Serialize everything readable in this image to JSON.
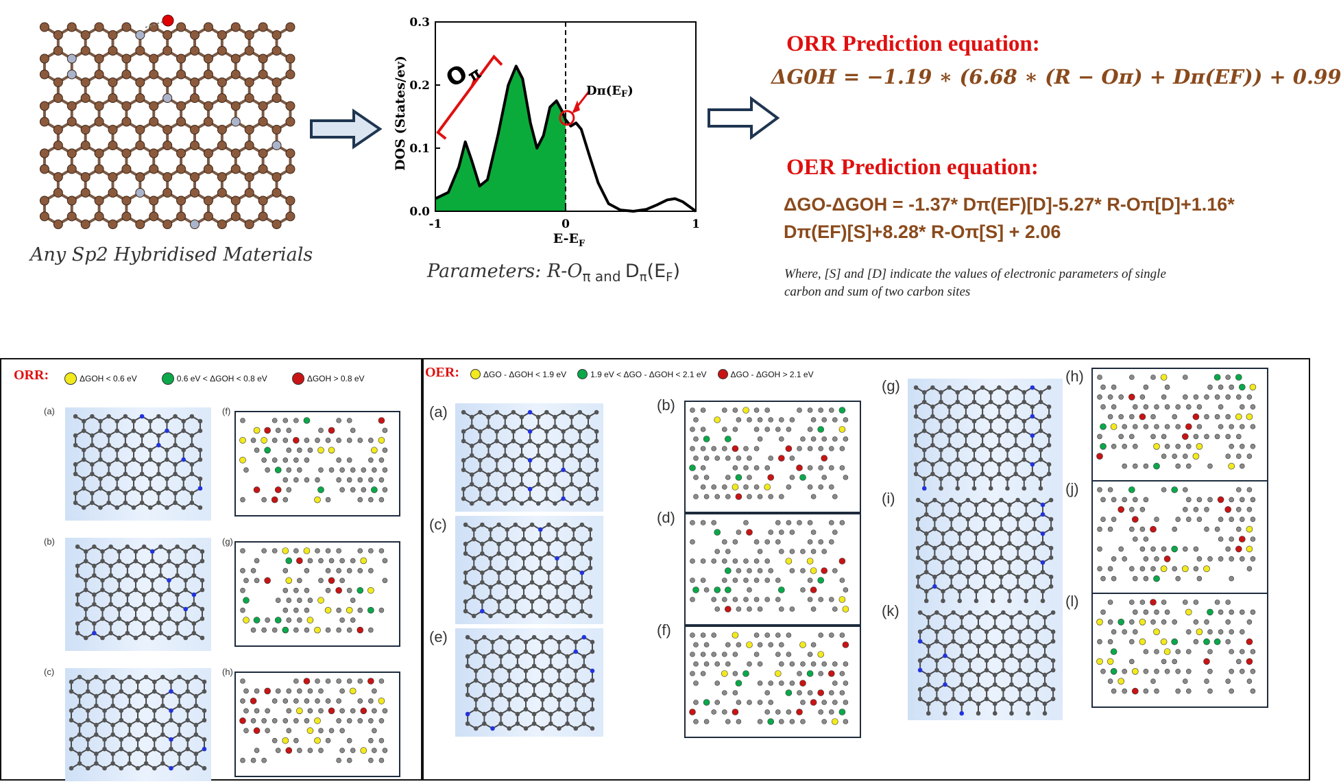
{
  "top": {
    "material_caption": "Any Sp2 Hybridised Materials",
    "dos_plot": {
      "ylabel": "DOS (States/ev)",
      "xlabel": "E-E",
      "xlabel_sub": "F",
      "op_label": "O",
      "op_sub": "π",
      "dpi_label": "Dπ(E",
      "dpi_sub": "F",
      "dpi_close": ")",
      "params_prefix": "Parameters: R-O",
      "params_pi": "π",
      "params_and": " and ",
      "params_d": "D",
      "params_d_sub": "π",
      "params_ef": "(E",
      "params_ef_sub": "F",
      "params_close": ")"
    },
    "orr_title": "ORR Prediction equation:",
    "orr_equation": "ΔG0H = −1.19 ∗ (6.68 ∗ (R − Oπ) + Dπ(EF)) + 0.99",
    "oer_title": "OER Prediction equation:",
    "oer_equation_line1": "ΔGO-ΔGOH = -1.37* Dπ(EF)[D]-5.27* R-Oπ[D]+1.16*",
    "oer_equation_line2": "Dπ(EF)[S]+8.28* R-Oπ[S] + 2.06",
    "where_line1": "Where, [S] and [D] indicate the values of electronic parameters of single",
    "where_line2": "carbon and sum of two carbon sites"
  },
  "chart_data": {
    "type": "area",
    "xlabel": "E-EF",
    "ylabel": "DOS (States/ev)",
    "xlim": [
      -1,
      1
    ],
    "ylim": [
      0,
      0.3
    ],
    "xticks": [
      "-1",
      "0",
      "1"
    ],
    "yticks": [
      "0.0",
      "0.1",
      "0.2",
      "0.3"
    ],
    "curve_x": [
      -1.0,
      -0.9,
      -0.82,
      -0.77,
      -0.72,
      -0.66,
      -0.6,
      -0.52,
      -0.44,
      -0.38,
      -0.33,
      -0.27,
      -0.22,
      -0.17,
      -0.12,
      -0.07,
      -0.03,
      0.0,
      0.04,
      0.08,
      0.12,
      0.18,
      0.25,
      0.33,
      0.42,
      0.52,
      0.62,
      0.7,
      0.78,
      0.84,
      0.9,
      0.96,
      1.0
    ],
    "curve_y": [
      0.02,
      0.03,
      0.07,
      0.11,
      0.08,
      0.04,
      0.05,
      0.12,
      0.2,
      0.23,
      0.21,
      0.14,
      0.1,
      0.12,
      0.165,
      0.175,
      0.16,
      0.145,
      0.135,
      0.14,
      0.13,
      0.09,
      0.045,
      0.012,
      0.002,
      0.0,
      0.003,
      0.01,
      0.018,
      0.02,
      0.015,
      0.006,
      0.0
    ],
    "filled_below_x": 0,
    "fill_color": "#0aab3a"
  },
  "bottom": {
    "orr": {
      "title": "ORR:",
      "legend": [
        {
          "color": "#f2ea1c",
          "label": "ΔGOH < 0.6 eV"
        },
        {
          "color": "#0aa84a",
          "label": "0.6 eV < ΔGOH < 0.8 eV"
        },
        {
          "color": "#c81414",
          "label": "ΔGOH > 0.8 eV"
        }
      ],
      "left_labels": [
        "(a)",
        "(b)",
        "(c)"
      ],
      "right_labels": [
        "(f)",
        "(g)",
        "(h)"
      ]
    },
    "oer": {
      "title": "OER:",
      "legend": [
        {
          "color": "#f2ea1c",
          "label": "ΔGO - ΔGOH < 1.9 eV"
        },
        {
          "color": "#0aa84a",
          "label": "1.9 eV < ΔGO - ΔGOH < 2.1 eV"
        },
        {
          "color": "#c81414",
          "label": "ΔGO - ΔGOH > 2.1 eV"
        }
      ],
      "labels": [
        "(a)",
        "(b)",
        "(c)",
        "(d)",
        "(e)",
        "(f)",
        "(g)",
        "(h)",
        "(i)",
        "(j)",
        "(k)",
        "(l)"
      ]
    }
  }
}
